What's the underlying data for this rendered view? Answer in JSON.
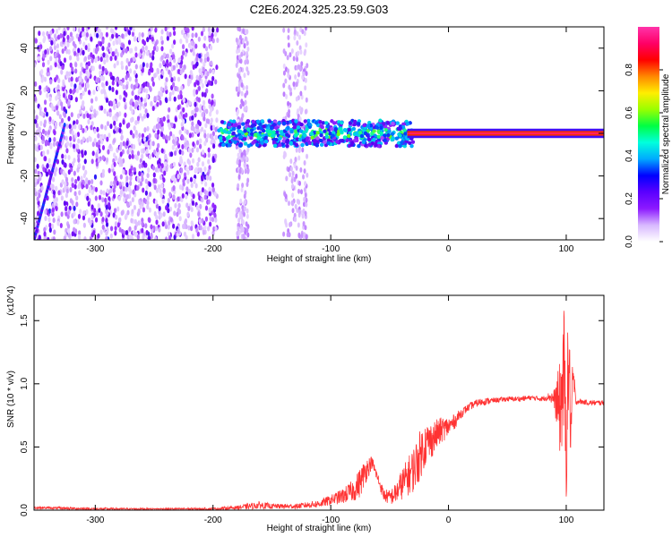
{
  "figure_title": "C2E6.2024.325.23.59.G03",
  "chart_data": [
    {
      "type": "heatmap",
      "title": "C2E6.2024.325.23.59.G03",
      "xlabel": "Height of straight line (km)",
      "ylabel": "Frequency (Hz)",
      "xlim": [
        -352,
        132
      ],
      "ylim": [
        -50,
        50
      ],
      "xticks": [
        -300,
        -200,
        -100,
        0,
        100
      ],
      "yticks": [
        -40,
        -20,
        0,
        20,
        40
      ],
      "colorbar": {
        "label": "Normalized spectral amplitude",
        "range": [
          0,
          1
        ],
        "ticks": [
          "0.0",
          "0.2",
          "0.4",
          "0.6",
          "0.8"
        ],
        "colors": [
          "#ffffff",
          "#d8b8ff",
          "#8c1aff",
          "#5a00ff",
          "#0000ff",
          "#00aaff",
          "#00ffdd",
          "#00ff44",
          "#99ff00",
          "#ffee00",
          "#ff8800",
          "#ff0000",
          "#ff0066",
          "#ff33aa"
        ]
      },
      "features": [
        {
          "name": "noise field",
          "x_range": [
            -352,
            -196
          ],
          "f_range": [
            -50,
            50
          ],
          "amplitude": 0.15
        },
        {
          "name": "diagonal streak",
          "x_from": -352,
          "x_to": -326,
          "f_from": -50,
          "f_to": 4,
          "amplitude": 0.25
        },
        {
          "name": "noisy carrier band",
          "x_range": [
            -195,
            -30
          ],
          "f_center": 0,
          "half_width_hz": 6,
          "amplitude": 0.35
        },
        {
          "name": "carrier line",
          "x_range": [
            -35,
            132
          ],
          "f_center": 0,
          "half_width_hz": 2,
          "amplitude": 0.98
        }
      ]
    },
    {
      "type": "line",
      "xlabel": "Height of straight line (km)",
      "ylabel": "SNR (10 * v/v)",
      "y_multiplier": "(x10^4)",
      "xlim": [
        -352,
        132
      ],
      "ylim": [
        0,
        1.7
      ],
      "xticks": [
        -300,
        -200,
        -100,
        0,
        100
      ],
      "yticks": [
        "0.0",
        "0.5",
        "1.0",
        "1.5"
      ],
      "color": "#ff3333",
      "x": [
        -352,
        -300,
        -250,
        -200,
        -180,
        -160,
        -150,
        -130,
        -110,
        -100,
        -90,
        -80,
        -75,
        -70,
        -65,
        -60,
        -55,
        -50,
        -45,
        -40,
        -35,
        -30,
        -25,
        -20,
        -15,
        -10,
        -5,
        0,
        5,
        10,
        15,
        20,
        25,
        30,
        40,
        50,
        60,
        70,
        80,
        85,
        90,
        95,
        98,
        100,
        102,
        104,
        106,
        108,
        110,
        120,
        132
      ],
      "y": [
        0.02,
        0.01,
        0.01,
        0.01,
        0.02,
        0.04,
        0.03,
        0.03,
        0.05,
        0.08,
        0.11,
        0.16,
        0.22,
        0.32,
        0.38,
        0.25,
        0.12,
        0.1,
        0.13,
        0.2,
        0.26,
        0.32,
        0.42,
        0.52,
        0.55,
        0.6,
        0.64,
        0.66,
        0.7,
        0.76,
        0.8,
        0.83,
        0.85,
        0.86,
        0.87,
        0.88,
        0.88,
        0.89,
        0.88,
        0.9,
        0.88,
        0.8,
        1.1,
        0.5,
        1.2,
        0.65,
        1.05,
        0.86,
        0.86,
        0.85,
        0.85
      ],
      "noise_amplitude": [
        0.01,
        0.01,
        0.005,
        0.01,
        0.015,
        0.03,
        0.02,
        0.02,
        0.03,
        0.04,
        0.06,
        0.09,
        0.12,
        0.1,
        0.05,
        0.04,
        0.05,
        0.06,
        0.08,
        0.12,
        0.15,
        0.18,
        0.2,
        0.18,
        0.15,
        0.12,
        0.1,
        0.08,
        0.06,
        0.04,
        0.03,
        0.03,
        0.03,
        0.03,
        0.02,
        0.02,
        0.02,
        0.02,
        0.02,
        0.03,
        0.08,
        0.4,
        0.55,
        0.45,
        0.5,
        0.3,
        0.2,
        0.03,
        0.02,
        0.02,
        0.02
      ]
    }
  ]
}
